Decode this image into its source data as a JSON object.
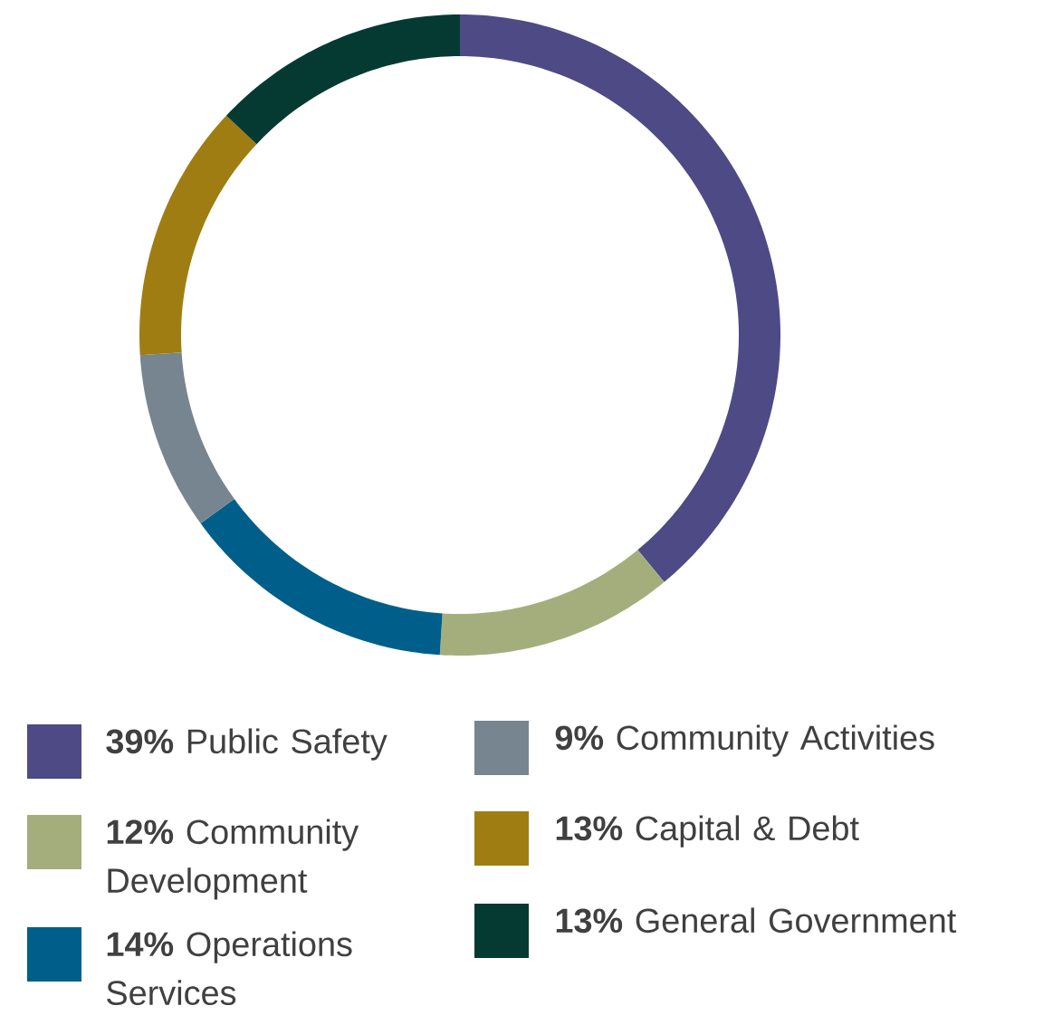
{
  "chart_data": {
    "type": "donut",
    "categories": [
      "**39%** Public Safety",
      "**12%** Community Development",
      "**14%** Operations Services",
      "**9%** Community Activities",
      "**13%** Capital & Debt",
      "**13%** General Government"
    ],
    "values": [
      39,
      12,
      14,
      9,
      13,
      13
    ],
    "colors": [
      "#4e4a85",
      "#a4ae7d",
      "#005f8a",
      "#76858f",
      "#a07d12",
      "#053a33"
    ],
    "legend": "bottom"
  }
}
